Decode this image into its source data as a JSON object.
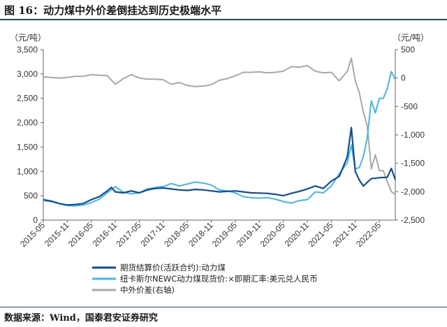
{
  "header": {
    "title": "图 16：动力煤中外价差倒挂达到历史极端水平"
  },
  "footer": {
    "source": "数据来源：Wind，国泰君安证券研究"
  },
  "colors": {
    "futures": "#0d4e9c",
    "newc": "#42b8ec",
    "spread": "#a8a8a8",
    "rule": "#1f4e79"
  },
  "chart_data": {
    "type": "line",
    "left_axis": {
      "unit": "（元/吨）",
      "range": [
        0,
        3500
      ],
      "ticks": [
        "0",
        "500",
        "1,000",
        "1,500",
        "2,000",
        "2,500",
        "3,000",
        "3,500"
      ]
    },
    "right_axis": {
      "unit": "（元/吨）",
      "range": [
        -2500,
        500
      ],
      "ticks": [
        "-2,500",
        "-2,000",
        "-1,500",
        "-1,000",
        "-500",
        "0",
        "500"
      ]
    },
    "x_ticks": [
      "2015-05",
      "2015-11",
      "2016-05",
      "2016-11",
      "2017-05",
      "2017-11",
      "2018-05",
      "2018-11",
      "2019-05",
      "2019-11",
      "2020-05",
      "2020-11",
      "2021-05",
      "2021-11",
      "2022-05"
    ],
    "x_range": [
      "2015-05",
      "2022-09"
    ],
    "series": [
      {
        "name": "期货结算价(活跃合约):动力煤",
        "axis": "left",
        "points": [
          [
            "2015-05",
            420
          ],
          [
            "2015-07",
            390
          ],
          [
            "2015-09",
            340
          ],
          [
            "2015-11",
            310
          ],
          [
            "2016-01",
            320
          ],
          [
            "2016-03",
            340
          ],
          [
            "2016-05",
            420
          ],
          [
            "2016-07",
            480
          ],
          [
            "2016-09",
            600
          ],
          [
            "2016-10",
            670
          ],
          [
            "2016-11",
            580
          ],
          [
            "2017-01",
            560
          ],
          [
            "2017-03",
            600
          ],
          [
            "2017-05",
            560
          ],
          [
            "2017-07",
            620
          ],
          [
            "2017-09",
            650
          ],
          [
            "2017-11",
            660
          ],
          [
            "2018-01",
            640
          ],
          [
            "2018-03",
            620
          ],
          [
            "2018-05",
            610
          ],
          [
            "2018-07",
            630
          ],
          [
            "2018-09",
            620
          ],
          [
            "2018-11",
            600
          ],
          [
            "2019-01",
            580
          ],
          [
            "2019-03",
            590
          ],
          [
            "2019-05",
            600
          ],
          [
            "2019-07",
            580
          ],
          [
            "2019-09",
            560
          ],
          [
            "2019-11",
            555
          ],
          [
            "2020-01",
            550
          ],
          [
            "2020-03",
            530
          ],
          [
            "2020-05",
            500
          ],
          [
            "2020-07",
            550
          ],
          [
            "2020-09",
            590
          ],
          [
            "2020-11",
            640
          ],
          [
            "2021-01",
            700
          ],
          [
            "2021-03",
            650
          ],
          [
            "2021-05",
            800
          ],
          [
            "2021-07",
            900
          ],
          [
            "2021-09",
            1300
          ],
          [
            "2021-10",
            1900
          ],
          [
            "2021-11",
            1000
          ],
          [
            "2021-12",
            820
          ],
          [
            "2022-01",
            700
          ],
          [
            "2022-03",
            850
          ],
          [
            "2022-05",
            870
          ],
          [
            "2022-07",
            880
          ],
          [
            "2022-08",
            1060
          ],
          [
            "2022-09",
            830
          ]
        ]
      },
      {
        "name": "纽卡斯尔NEWC动力煤现货价:×即期汇率:美元兑人民币",
        "axis": "left",
        "points": [
          [
            "2015-05",
            400
          ],
          [
            "2015-07",
            380
          ],
          [
            "2015-09",
            340
          ],
          [
            "2015-11",
            300
          ],
          [
            "2016-01",
            290
          ],
          [
            "2016-03",
            310
          ],
          [
            "2016-05",
            360
          ],
          [
            "2016-07",
            430
          ],
          [
            "2016-09",
            560
          ],
          [
            "2016-11",
            690
          ],
          [
            "2017-01",
            570
          ],
          [
            "2017-03",
            540
          ],
          [
            "2017-05",
            560
          ],
          [
            "2017-07",
            640
          ],
          [
            "2017-09",
            670
          ],
          [
            "2017-11",
            690
          ],
          [
            "2018-01",
            750
          ],
          [
            "2018-03",
            700
          ],
          [
            "2018-05",
            740
          ],
          [
            "2018-07",
            780
          ],
          [
            "2018-09",
            760
          ],
          [
            "2018-11",
            720
          ],
          [
            "2019-01",
            620
          ],
          [
            "2019-03",
            600
          ],
          [
            "2019-05",
            560
          ],
          [
            "2019-07",
            480
          ],
          [
            "2019-09",
            460
          ],
          [
            "2019-11",
            450
          ],
          [
            "2020-01",
            460
          ],
          [
            "2020-03",
            430
          ],
          [
            "2020-05",
            380
          ],
          [
            "2020-07",
            350
          ],
          [
            "2020-09",
            400
          ],
          [
            "2020-11",
            420
          ],
          [
            "2021-01",
            580
          ],
          [
            "2021-03",
            560
          ],
          [
            "2021-05",
            700
          ],
          [
            "2021-07",
            950
          ],
          [
            "2021-09",
            1180
          ],
          [
            "2021-10",
            1540
          ],
          [
            "2021-11",
            1050
          ],
          [
            "2021-12",
            1080
          ],
          [
            "2022-01",
            1300
          ],
          [
            "2022-02",
            1700
          ],
          [
            "2022-03",
            2450
          ],
          [
            "2022-04",
            2200
          ],
          [
            "2022-05",
            2500
          ],
          [
            "2022-06",
            2500
          ],
          [
            "2022-07",
            2700
          ],
          [
            "2022-08",
            3050
          ],
          [
            "2022-09",
            2880
          ]
        ]
      },
      {
        "name": "中外价差(右轴)",
        "axis": "right",
        "points": [
          [
            "2015-05",
            20
          ],
          [
            "2015-07",
            10
          ],
          [
            "2015-09",
            0
          ],
          [
            "2015-11",
            10
          ],
          [
            "2016-01",
            30
          ],
          [
            "2016-03",
            30
          ],
          [
            "2016-05",
            60
          ],
          [
            "2016-07",
            50
          ],
          [
            "2016-09",
            40
          ],
          [
            "2016-11",
            -110
          ],
          [
            "2017-01",
            -10
          ],
          [
            "2017-03",
            60
          ],
          [
            "2017-05",
            0
          ],
          [
            "2017-07",
            -20
          ],
          [
            "2017-09",
            -20
          ],
          [
            "2017-11",
            -30
          ],
          [
            "2018-01",
            -110
          ],
          [
            "2018-03",
            -80
          ],
          [
            "2018-05",
            -130
          ],
          [
            "2018-07",
            -150
          ],
          [
            "2018-09",
            -140
          ],
          [
            "2018-11",
            -120
          ],
          [
            "2019-01",
            -40
          ],
          [
            "2019-03",
            -10
          ],
          [
            "2019-05",
            40
          ],
          [
            "2019-07",
            100
          ],
          [
            "2019-09",
            100
          ],
          [
            "2019-11",
            110
          ],
          [
            "2020-01",
            90
          ],
          [
            "2020-03",
            100
          ],
          [
            "2020-05",
            120
          ],
          [
            "2020-07",
            200
          ],
          [
            "2020-09",
            190
          ],
          [
            "2020-11",
            220
          ],
          [
            "2021-01",
            120
          ],
          [
            "2021-03",
            90
          ],
          [
            "2021-05",
            100
          ],
          [
            "2021-07",
            -50
          ],
          [
            "2021-09",
            120
          ],
          [
            "2021-10",
            350
          ],
          [
            "2021-11",
            -50
          ],
          [
            "2021-12",
            -260
          ],
          [
            "2022-01",
            -600
          ],
          [
            "2022-02",
            -850
          ],
          [
            "2022-03",
            -1600
          ],
          [
            "2022-04",
            -1350
          ],
          [
            "2022-05",
            -1630
          ],
          [
            "2022-06",
            -1630
          ],
          [
            "2022-07",
            -1820
          ],
          [
            "2022-08",
            -2000
          ],
          [
            "2022-09",
            -2050
          ]
        ]
      }
    ],
    "legend_position": "bottom-left",
    "grid": false
  }
}
